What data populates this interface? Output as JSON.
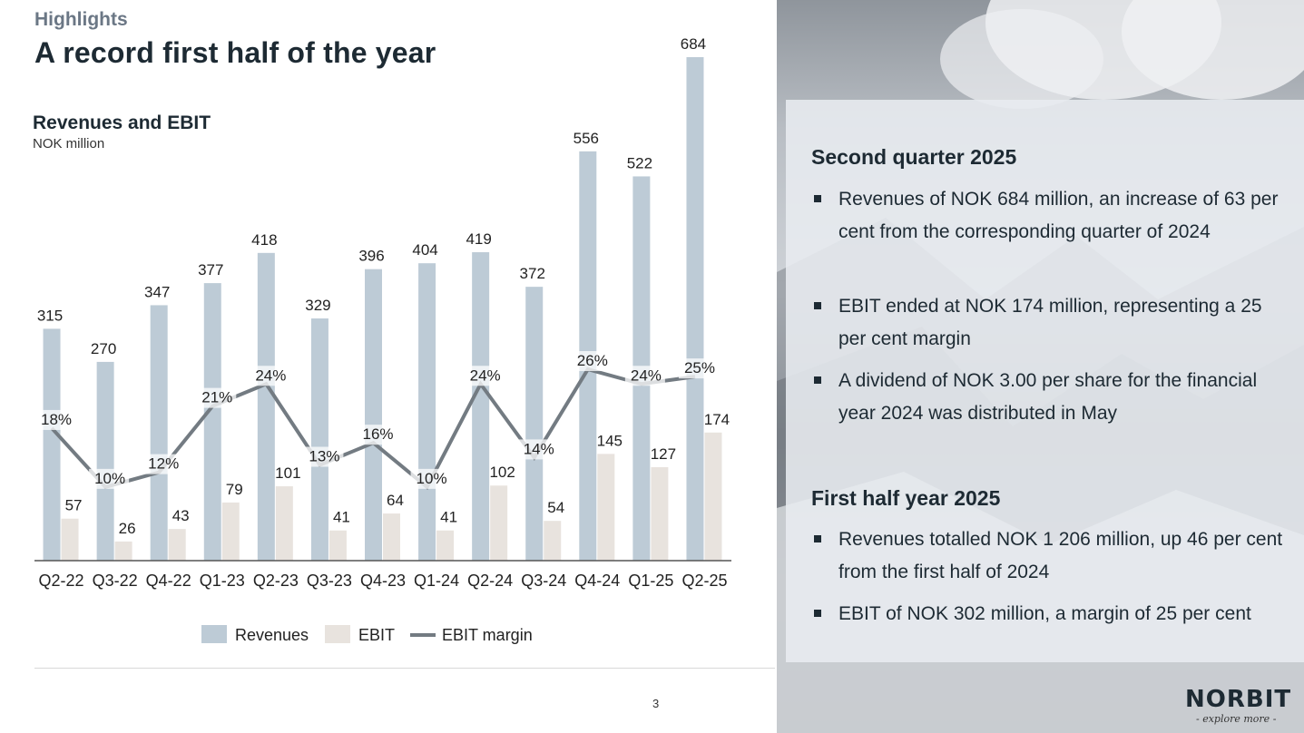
{
  "header": {
    "eyebrow": "Highlights",
    "title": "A record first half of the year"
  },
  "chart_heading": {
    "title": "Revenues and EBIT",
    "unit": "NOK million"
  },
  "chart_data": {
    "type": "bar",
    "title": "Revenues and EBIT",
    "ylabel": "NOK million",
    "categories": [
      "Q2-22",
      "Q3-22",
      "Q4-22",
      "Q1-23",
      "Q2-23",
      "Q3-23",
      "Q4-23",
      "Q1-24",
      "Q2-24",
      "Q3-24",
      "Q4-24",
      "Q1-25",
      "Q2-25"
    ],
    "series": [
      {
        "name": "Revenues",
        "type": "bar",
        "color": "#bdcbd6",
        "values": [
          315,
          270,
          347,
          377,
          418,
          329,
          396,
          404,
          419,
          372,
          556,
          522,
          684
        ]
      },
      {
        "name": "EBIT",
        "type": "bar",
        "color": "#e8e3de",
        "values": [
          57,
          26,
          43,
          79,
          101,
          41,
          64,
          41,
          102,
          54,
          145,
          127,
          174
        ]
      },
      {
        "name": "EBIT margin",
        "type": "line",
        "color": "#737b82",
        "values": [
          18,
          10,
          12,
          21,
          24,
          13,
          16,
          10,
          24,
          14,
          26,
          24,
          25
        ],
        "labels": [
          "18%",
          "10%",
          "12%",
          "21%",
          "24%",
          "13%",
          "16%",
          "10%",
          "24%",
          "14%",
          "26%",
          "24%",
          "25%"
        ]
      }
    ],
    "ylim": [
      0,
      700
    ],
    "margin_ylim": [
      0,
      70
    ],
    "legend": "bottom",
    "grid": false
  },
  "legend": {
    "revenues": "Revenues",
    "ebit": "EBIT",
    "margin": "EBIT margin"
  },
  "page_number": "3",
  "panel": {
    "q2_title": "Second quarter 2025",
    "q2_bullets": [
      "Revenues of NOK 684 million, an increase of 63 per cent from the corresponding quarter of 2024",
      "EBIT ended at NOK 174 million, representing a 25 per cent margin",
      "A dividend of NOK 3.00 per share for the financial year 2024 was distributed in May"
    ],
    "h1_title": "First half year 2025",
    "h1_bullets": [
      "Revenues totalled NOK 1 206 million, up 46 per cent from the first half of 2024",
      "EBIT of NOK 302 million, a margin of 25 per cent"
    ]
  },
  "logo": {
    "name": "NORBIT",
    "tagline": "- explore more -"
  }
}
